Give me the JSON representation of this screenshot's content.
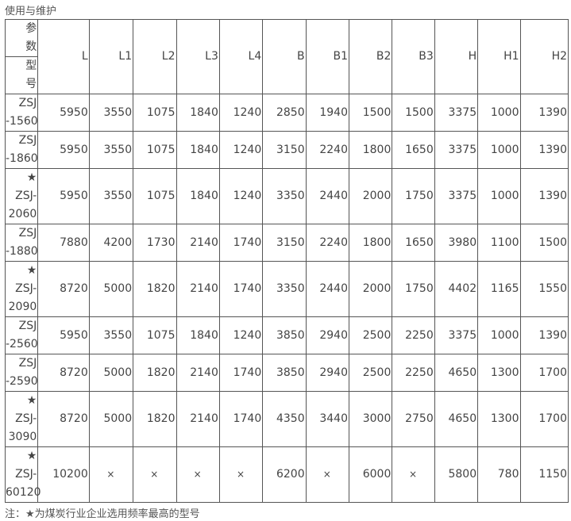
{
  "title": "使用与维护",
  "header": {
    "param_label": "参\n数",
    "model_label": "型\n号",
    "columns": [
      "L",
      "L1",
      "L2",
      "L3",
      "L4",
      "B",
      "B1",
      "B2",
      "B3",
      "H",
      "H1",
      "H2"
    ]
  },
  "rows": [
    {
      "model": "ZSJ\n-1560",
      "values": [
        "5950",
        "3550",
        "1075",
        "1840",
        "1240",
        "2850",
        "1940",
        "1500",
        "1500",
        "3375",
        "1000",
        "1390"
      ]
    },
    {
      "model": "ZSJ\n-1860",
      "values": [
        "5950",
        "3550",
        "1075",
        "1840",
        "1240",
        "3150",
        "2240",
        "1800",
        "1650",
        "3375",
        "1000",
        "1390"
      ]
    },
    {
      "model": "★\nZSJ-\n2060",
      "values": [
        "5950",
        "3550",
        "1075",
        "1840",
        "1240",
        "3350",
        "2440",
        "2000",
        "1750",
        "3375",
        "1000",
        "1390"
      ]
    },
    {
      "model": "ZSJ\n-1880",
      "values": [
        "7880",
        "4200",
        "1730",
        "2140",
        "1740",
        "3150",
        "2240",
        "1800",
        "1650",
        "3980",
        "1100",
        "1500"
      ]
    },
    {
      "model": "★\nZSJ-\n2090",
      "values": [
        "8720",
        "5000",
        "1820",
        "2140",
        "1740",
        "3350",
        "2440",
        "2000",
        "1750",
        "4402",
        "1165",
        "1550"
      ]
    },
    {
      "model": "ZSJ\n-2560",
      "values": [
        "5950",
        "3550",
        "1075",
        "1840",
        "1240",
        "3850",
        "2940",
        "2500",
        "2250",
        "3375",
        "1000",
        "1390"
      ]
    },
    {
      "model": "ZSJ\n-2590",
      "values": [
        "8720",
        "5000",
        "1820",
        "2140",
        "1740",
        "3850",
        "2940",
        "2500",
        "2250",
        "4650",
        "1300",
        "1700"
      ]
    },
    {
      "model": "★\nZSJ-\n3090",
      "values": [
        "8720",
        "5000",
        "1820",
        "2140",
        "1740",
        "4350",
        "3440",
        "3000",
        "2750",
        "4650",
        "1300",
        "1700"
      ]
    },
    {
      "model": "★\nZSJ-\n60120",
      "values": [
        "10200",
        "×",
        "×",
        "×",
        "×",
        "6200",
        "×",
        "6000",
        "×",
        "5800",
        "780",
        "1150"
      ]
    }
  ],
  "note": "注：★为煤炭行业企业选用频率最高的型号"
}
